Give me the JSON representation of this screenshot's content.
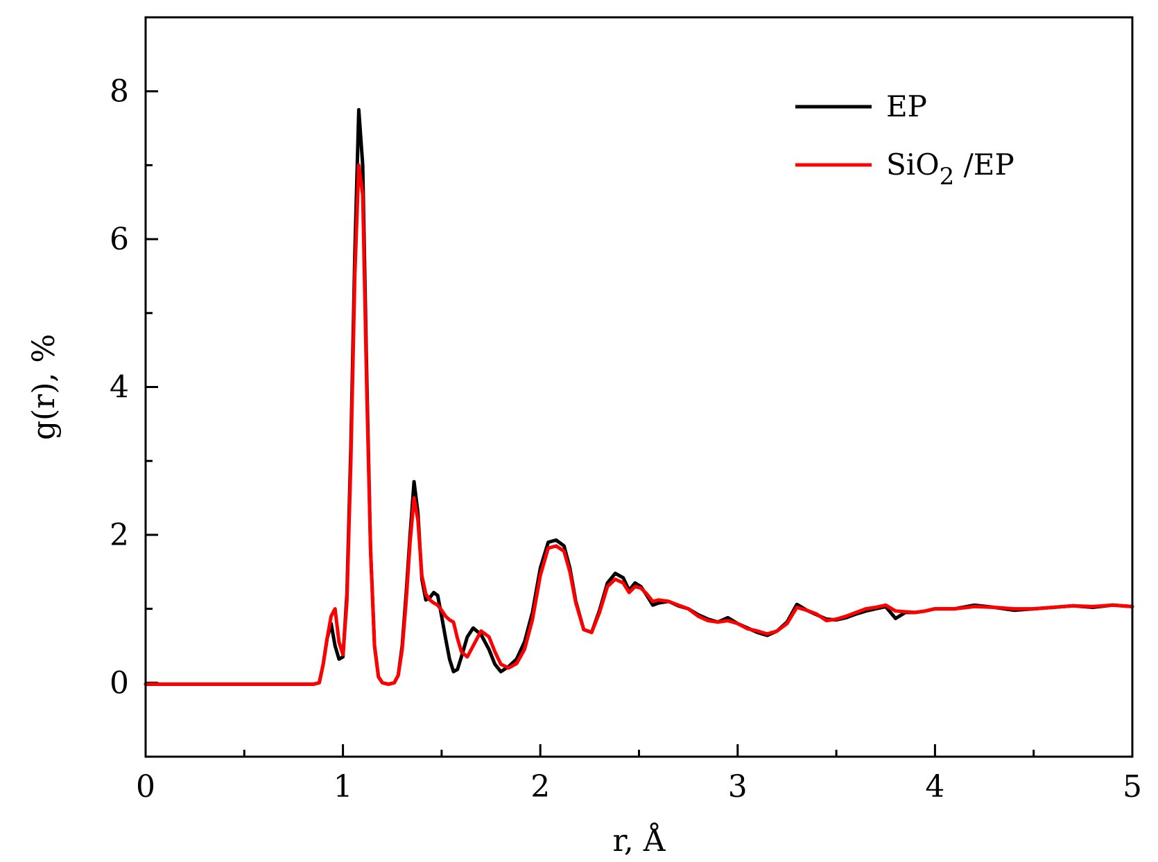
{
  "chart_data": {
    "type": "line",
    "title": "",
    "xlabel": "r, Å",
    "ylabel": "g(r), %",
    "xlim": [
      0,
      5
    ],
    "ylim": [
      -1,
      9
    ],
    "x_ticks": [
      0,
      1,
      2,
      3,
      4,
      5
    ],
    "x_minor_ticks": [
      0.5,
      1.5,
      2.5,
      3.5,
      4.5
    ],
    "y_ticks": [
      0,
      2,
      4,
      6,
      8
    ],
    "y_minor_ticks": [
      1,
      3,
      5,
      7
    ],
    "grid": false,
    "legend_position": "top-right",
    "legend": {
      "entries": [
        {
          "label": "EP",
          "color": "#000000"
        },
        {
          "label_main": "SiO",
          "label_sub": "2",
          "label_tail": " /EP",
          "color": "#ff0000"
        }
      ]
    },
    "series": [
      {
        "name": "EP",
        "color": "#000000",
        "x": [
          0,
          0.85,
          0.88,
          0.9,
          0.92,
          0.94,
          0.96,
          0.98,
          1.0,
          1.02,
          1.04,
          1.06,
          1.08,
          1.1,
          1.12,
          1.14,
          1.16,
          1.18,
          1.2,
          1.23,
          1.26,
          1.28,
          1.3,
          1.32,
          1.34,
          1.36,
          1.38,
          1.4,
          1.42,
          1.44,
          1.46,
          1.48,
          1.5,
          1.52,
          1.54,
          1.56,
          1.58,
          1.6,
          1.63,
          1.66,
          1.7,
          1.74,
          1.77,
          1.8,
          1.84,
          1.88,
          1.92,
          1.96,
          2.0,
          2.04,
          2.08,
          2.12,
          2.15,
          2.18,
          2.22,
          2.26,
          2.3,
          2.34,
          2.38,
          2.42,
          2.45,
          2.48,
          2.51,
          2.54,
          2.57,
          2.6,
          2.65,
          2.7,
          2.75,
          2.8,
          2.85,
          2.9,
          2.95,
          3.0,
          3.05,
          3.1,
          3.15,
          3.2,
          3.25,
          3.3,
          3.35,
          3.4,
          3.45,
          3.5,
          3.55,
          3.6,
          3.65,
          3.7,
          3.75,
          3.8,
          3.85,
          3.9,
          3.95,
          4.0,
          4.1,
          4.2,
          4.3,
          4.4,
          4.5,
          4.6,
          4.7,
          4.8,
          4.9,
          5.0
        ],
        "y": [
          -0.02,
          -0.02,
          0.0,
          0.25,
          0.6,
          0.8,
          0.5,
          0.32,
          0.35,
          1.2,
          3.2,
          5.8,
          7.75,
          7.0,
          4.2,
          1.8,
          0.5,
          0.08,
          0.0,
          -0.02,
          0.0,
          0.1,
          0.5,
          1.2,
          2.0,
          2.72,
          2.3,
          1.4,
          1.12,
          1.15,
          1.22,
          1.18,
          0.9,
          0.6,
          0.32,
          0.15,
          0.18,
          0.35,
          0.62,
          0.74,
          0.65,
          0.45,
          0.25,
          0.15,
          0.22,
          0.32,
          0.55,
          0.95,
          1.55,
          1.9,
          1.93,
          1.85,
          1.55,
          1.1,
          0.72,
          0.68,
          0.98,
          1.35,
          1.48,
          1.42,
          1.25,
          1.35,
          1.3,
          1.18,
          1.05,
          1.08,
          1.1,
          1.04,
          1.0,
          0.92,
          0.86,
          0.82,
          0.88,
          0.8,
          0.74,
          0.68,
          0.64,
          0.7,
          0.82,
          1.06,
          0.98,
          0.92,
          0.86,
          0.85,
          0.88,
          0.93,
          0.97,
          1.0,
          1.03,
          0.87,
          0.95,
          0.95,
          0.97,
          1.0,
          1.0,
          1.05,
          1.02,
          0.98,
          1.0,
          1.02,
          1.04,
          1.02,
          1.05,
          1.03
        ]
      },
      {
        "name": "SiO2 /EP",
        "color": "#ff0000",
        "x": [
          0,
          0.85,
          0.88,
          0.9,
          0.92,
          0.94,
          0.96,
          0.98,
          1.0,
          1.02,
          1.04,
          1.06,
          1.08,
          1.1,
          1.12,
          1.14,
          1.16,
          1.18,
          1.2,
          1.23,
          1.26,
          1.28,
          1.3,
          1.32,
          1.34,
          1.36,
          1.38,
          1.4,
          1.42,
          1.44,
          1.46,
          1.48,
          1.5,
          1.52,
          1.54,
          1.56,
          1.58,
          1.6,
          1.63,
          1.66,
          1.7,
          1.74,
          1.77,
          1.8,
          1.84,
          1.88,
          1.92,
          1.96,
          2.0,
          2.04,
          2.08,
          2.12,
          2.15,
          2.18,
          2.22,
          2.26,
          2.3,
          2.34,
          2.38,
          2.42,
          2.45,
          2.48,
          2.51,
          2.54,
          2.57,
          2.6,
          2.65,
          2.7,
          2.75,
          2.8,
          2.85,
          2.9,
          2.95,
          3.0,
          3.05,
          3.1,
          3.15,
          3.2,
          3.25,
          3.3,
          3.35,
          3.4,
          3.45,
          3.5,
          3.55,
          3.6,
          3.65,
          3.7,
          3.75,
          3.8,
          3.85,
          3.9,
          3.95,
          4.0,
          4.1,
          4.2,
          4.3,
          4.4,
          4.5,
          4.6,
          4.7,
          4.8,
          4.9,
          5.0
        ],
        "y": [
          -0.02,
          -0.02,
          0.0,
          0.25,
          0.6,
          0.9,
          1.0,
          0.55,
          0.38,
          1.1,
          3.0,
          5.5,
          7.0,
          6.6,
          4.0,
          1.8,
          0.5,
          0.08,
          0.0,
          -0.02,
          0.0,
          0.1,
          0.45,
          1.1,
          1.9,
          2.5,
          2.2,
          1.45,
          1.2,
          1.12,
          1.08,
          1.05,
          0.98,
          0.9,
          0.85,
          0.82,
          0.6,
          0.42,
          0.35,
          0.5,
          0.7,
          0.62,
          0.42,
          0.25,
          0.2,
          0.26,
          0.45,
          0.85,
          1.45,
          1.82,
          1.85,
          1.78,
          1.5,
          1.08,
          0.72,
          0.68,
          0.95,
          1.3,
          1.4,
          1.35,
          1.22,
          1.3,
          1.28,
          1.2,
          1.1,
          1.12,
          1.1,
          1.05,
          1.0,
          0.9,
          0.84,
          0.82,
          0.84,
          0.8,
          0.73,
          0.7,
          0.66,
          0.7,
          0.8,
          1.02,
          0.98,
          0.93,
          0.84,
          0.86,
          0.9,
          0.95,
          1.0,
          1.02,
          1.05,
          0.97,
          0.96,
          0.95,
          0.97,
          1.0,
          1.0,
          1.03,
          1.02,
          1.0,
          1.0,
          1.02,
          1.04,
          1.03,
          1.05,
          1.03
        ]
      }
    ]
  }
}
